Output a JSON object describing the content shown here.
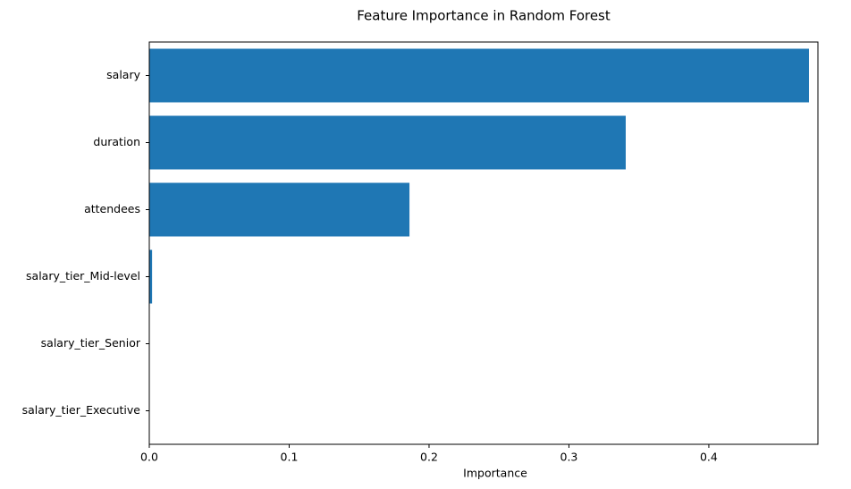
{
  "chart_data": {
    "type": "barh",
    "title": "Feature Importance in Random Forest",
    "x_label": "Importance",
    "categories": [
      "salary",
      "duration",
      "attendees",
      "salary_tier_Mid-level",
      "salary_tier_Senior",
      "salary_tier_Executive"
    ],
    "values": [
      0.4716,
      0.3406,
      0.186,
      0.002,
      0,
      0
    ],
    "color": "#1f77b4",
    "xlim": [
      0,
      0.478
    ],
    "xticks": [
      {
        "value": 0,
        "label": "0.0"
      },
      0.1,
      0.2,
      0.3,
      0.4
    ],
    "grid": false
  }
}
